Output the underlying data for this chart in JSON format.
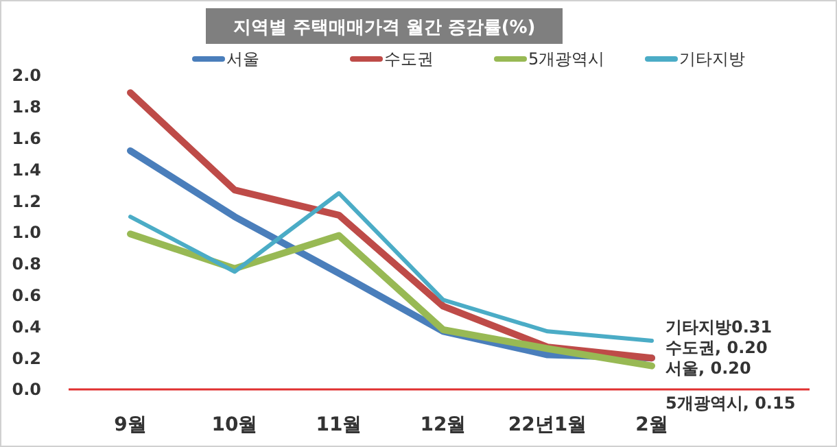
{
  "chart_data": {
    "type": "line",
    "title": "지역별 주택매매가격 월간 증감률(%)",
    "categories": [
      "9월",
      "10월",
      "11월",
      "12월",
      "22년1월",
      "2월"
    ],
    "series": [
      {
        "name": "서울",
        "color": "#4a7ebb",
        "values": [
          1.52,
          1.1,
          0.74,
          0.37,
          0.22,
          0.2
        ]
      },
      {
        "name": "수도권",
        "color": "#be4b48",
        "values": [
          1.89,
          1.27,
          1.11,
          0.53,
          0.27,
          0.2
        ]
      },
      {
        "name": "5개광역시",
        "color": "#98b954",
        "values": [
          0.99,
          0.77,
          0.98,
          0.38,
          0.26,
          0.15
        ]
      },
      {
        "name": "기타지방",
        "color": "#4bacc6",
        "values": [
          1.1,
          0.75,
          1.25,
          0.57,
          0.37,
          0.31
        ]
      }
    ],
    "ylim": [
      0,
      2.0
    ],
    "yticks": [
      {
        "value": 0,
        "label": "0.0"
      },
      {
        "value": 0.2,
        "label": "0.2"
      },
      {
        "value": 0.4,
        "label": "0.4"
      },
      {
        "value": 0.6,
        "label": "0.6"
      },
      {
        "value": 0.8,
        "label": "0.8"
      },
      {
        "value": 1.0,
        "label": "1.0"
      },
      {
        "value": 1.2,
        "label": "1.2"
      },
      {
        "value": 1.4,
        "label": "1.4"
      },
      {
        "value": 1.6,
        "label": "1.6"
      },
      {
        "value": 1.8,
        "label": "1.8"
      },
      {
        "value": 2.0,
        "label": "2.0"
      }
    ],
    "annotations": [
      {
        "text": "기타지방0.31",
        "x": "2월",
        "y": 0.31
      },
      {
        "text": "수도권, 0.20",
        "x": "2월",
        "y": 0.2
      },
      {
        "text": "서울, 0.20",
        "x": "2월",
        "y": 0.2
      },
      {
        "text": "5개광역시, 0.15",
        "x": "2월",
        "y": 0.15
      }
    ],
    "grid": false,
    "legend": "top",
    "marker": "none",
    "line_style": "solid"
  }
}
